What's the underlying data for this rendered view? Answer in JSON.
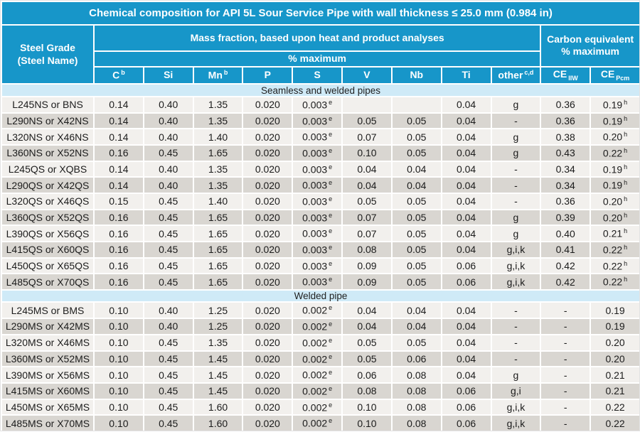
{
  "title": "Chemical composition for API 5L Sour Service Pipe with wall thickness ≤ 25.0 mm (0.984 in)",
  "headers": {
    "steel_grade_line1": "Steel Grade",
    "steel_grade_line2": "(Steel Name)",
    "mass_fraction": "Mass fraction, based upon heat and product analyses",
    "percent_maximum": "% maximum",
    "carbon_equiv_line1": "Carbon equivalent",
    "carbon_equiv_line2": "% maximum"
  },
  "columns": [
    {
      "key": "c",
      "label": "C|b"
    },
    {
      "key": "si",
      "label": "Si"
    },
    {
      "key": "mn",
      "label": "Mn|b"
    },
    {
      "key": "p",
      "label": "P"
    },
    {
      "key": "s",
      "label": "S"
    },
    {
      "key": "v",
      "label": "V"
    },
    {
      "key": "nb",
      "label": "Nb"
    },
    {
      "key": "ti",
      "label": "Ti"
    },
    {
      "key": "other",
      "label": "other|c,d"
    },
    {
      "key": "ce-iiw",
      "label": "CE~IIW"
    },
    {
      "key": "ce-pcm",
      "label": "CE~Pcm"
    }
  ],
  "sections": [
    {
      "label": "Seamless and welded pipes",
      "rows": [
        [
          "L245NS or BNS",
          "0.14",
          "0.40",
          "1.35",
          "0.020",
          "0.003|e",
          "",
          "",
          "0.04",
          "g",
          "0.36",
          "0.19|h"
        ],
        [
          "L290NS or X42NS",
          "0.14",
          "0.40",
          "1.35",
          "0.020",
          "0.003|e",
          "0.05",
          "0.05",
          "0.04",
          "-",
          "0.36",
          "0.19|h"
        ],
        [
          "L320NS or X46NS",
          "0.14",
          "0.40",
          "1.40",
          "0.020",
          "0.003|e",
          "0.07",
          "0.05",
          "0.04",
          "g",
          "0.38",
          "0.20|h"
        ],
        [
          "L360NS or X52NS",
          "0.16",
          "0.45",
          "1.65",
          "0.020",
          "0.003|e",
          "0.10",
          "0.05",
          "0.04",
          "g",
          "0.43",
          "0.22|h"
        ],
        [
          "L245QS or XQBS",
          "0.14",
          "0.40",
          "1.35",
          "0.020",
          "0.003|e",
          "0.04",
          "0.04",
          "0.04",
          "-",
          "0.34",
          "0.19|h"
        ],
        [
          "L290QS or X42QS",
          "0.14",
          "0.40",
          "1.35",
          "0.020",
          "0.003|e",
          "0.04",
          "0.04",
          "0.04",
          "-",
          "0.34",
          "0.19|h"
        ],
        [
          "L320QS or X46QS",
          "0.15",
          "0.45",
          "1.40",
          "0.020",
          "0.003|e",
          "0.05",
          "0.05",
          "0.04",
          "-",
          "0.36",
          "0.20|h"
        ],
        [
          "L360QS or X52QS",
          "0.16",
          "0.45",
          "1.65",
          "0.020",
          "0.003|e",
          "0.07",
          "0.05",
          "0.04",
          "g",
          "0.39",
          "0.20|h"
        ],
        [
          "L390QS or X56QS",
          "0.16",
          "0.45",
          "1.65",
          "0.020",
          "0.003|e",
          "0.07",
          "0.05",
          "0.04",
          "g",
          "0.40",
          "0.21|h"
        ],
        [
          "L415QS or X60QS",
          "0.16",
          "0.45",
          "1.65",
          "0.020",
          "0.003|e",
          "0.08",
          "0.05",
          "0.04",
          "g,i,k",
          "0.41",
          "0.22|h"
        ],
        [
          "L450QS or X65QS",
          "0.16",
          "0.45",
          "1.65",
          "0.020",
          "0.003|e",
          "0.09",
          "0.05",
          "0.06",
          "g,i,k",
          "0.42",
          "0.22|h"
        ],
        [
          "L485QS or X70QS",
          "0.16",
          "0.45",
          "1.65",
          "0.020",
          "0.003|e",
          "0.09",
          "0.05",
          "0.06",
          "g,i,k",
          "0.42",
          "0.22|h"
        ]
      ]
    },
    {
      "label": "Welded pipe",
      "rows": [
        [
          "L245MS or BMS",
          "0.10",
          "0.40",
          "1.25",
          "0.020",
          "0.002|e",
          "0.04",
          "0.04",
          "0.04",
          "-",
          "-",
          "0.19"
        ],
        [
          "L290MS or X42MS",
          "0.10",
          "0.40",
          "1.25",
          "0.020",
          "0.002|e",
          "0.04",
          "0.04",
          "0.04",
          "-",
          "-",
          "0.19"
        ],
        [
          "L320MS or X46MS",
          "0.10",
          "0.45",
          "1.35",
          "0.020",
          "0.002|e",
          "0.05",
          "0.05",
          "0.04",
          "-",
          "-",
          "0.20"
        ],
        [
          "L360MS or X52MS",
          "0.10",
          "0.45",
          "1.45",
          "0.020",
          "0.002|e",
          "0.05",
          "0.06",
          "0.04",
          "-",
          "-",
          "0.20"
        ],
        [
          "L390MS or X56MS",
          "0.10",
          "0.45",
          "1.45",
          "0.020",
          "0.002|e",
          "0.06",
          "0.08",
          "0.04",
          "g",
          "-",
          "0.21"
        ],
        [
          "L415MS or X60MS",
          "0.10",
          "0.45",
          "1.45",
          "0.020",
          "0.002|e",
          "0.08",
          "0.08",
          "0.06",
          "g,i",
          "-",
          "0.21"
        ],
        [
          "L450MS or X65MS",
          "0.10",
          "0.45",
          "1.60",
          "0.020",
          "0.002|e",
          "0.10",
          "0.08",
          "0.06",
          "g,i,k",
          "-",
          "0.22"
        ],
        [
          "L485MS or X70MS",
          "0.10",
          "0.45",
          "1.60",
          "0.020",
          "0.002|e",
          "0.10",
          "0.08",
          "0.06",
          "g,i,k",
          "-",
          "0.22"
        ]
      ]
    }
  ],
  "colors": {
    "header_blue": "#1796c9",
    "section_pale_blue": "#cfeaf7",
    "row_light": "#f2f0ed",
    "row_dark": "#d9d6d1"
  }
}
